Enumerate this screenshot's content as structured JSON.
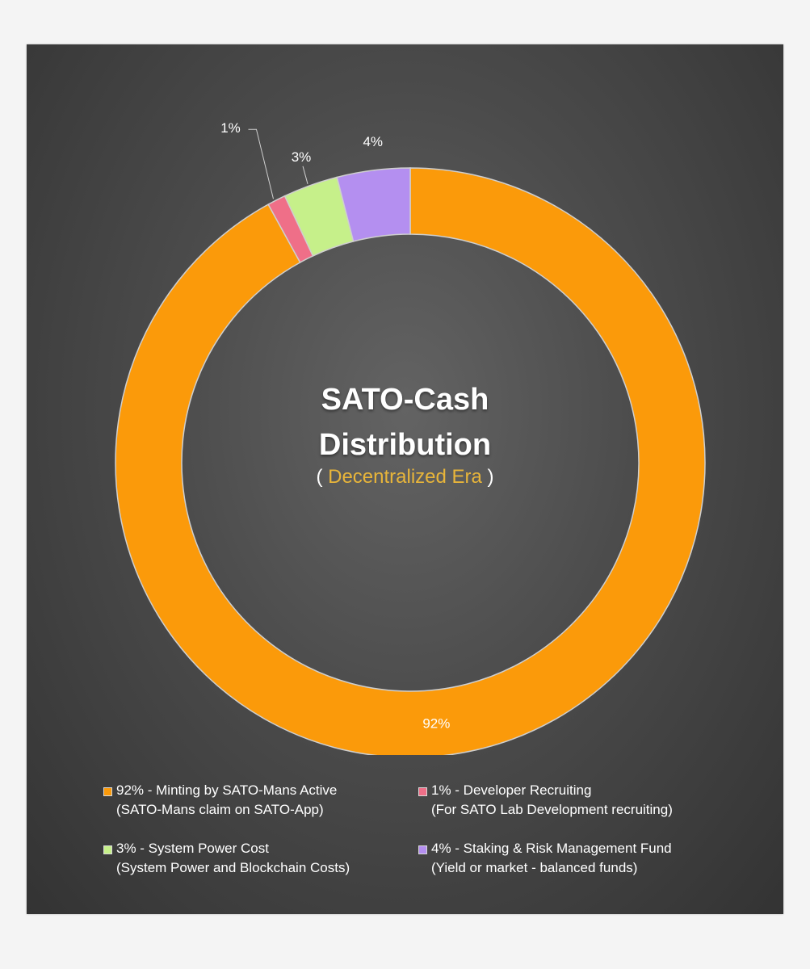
{
  "chart_data": {
    "type": "pie",
    "donut": true,
    "title_lines": [
      "SATO-Cash",
      "Distribution"
    ],
    "subtitle_open": "( ",
    "subtitle_era": "Decentralized Era",
    "subtitle_close": " )",
    "slices": [
      {
        "label": "92% - Minting by SATO-Mans Active",
        "detail": "(SATO-Mans claim on SATO-App)",
        "value": 92,
        "data_label": "92%",
        "color": "#fb9a0a"
      },
      {
        "label": "1% - Developer Recruiting",
        "detail": "(For SATO Lab Development recruiting)",
        "value": 1,
        "data_label": "1%",
        "color": "#ef6f88"
      },
      {
        "label": "3% - System Power Cost",
        "detail": "(System Power and Blockchain Costs)",
        "value": 3,
        "data_label": "3%",
        "color": "#c6f08a"
      },
      {
        "label": "4% - Staking & Risk Management Fund",
        "detail": "(Yield or market - balanced funds)",
        "value": 4,
        "data_label": "4%",
        "color": "#b48ff0"
      }
    ],
    "legend_position": "bottom"
  }
}
